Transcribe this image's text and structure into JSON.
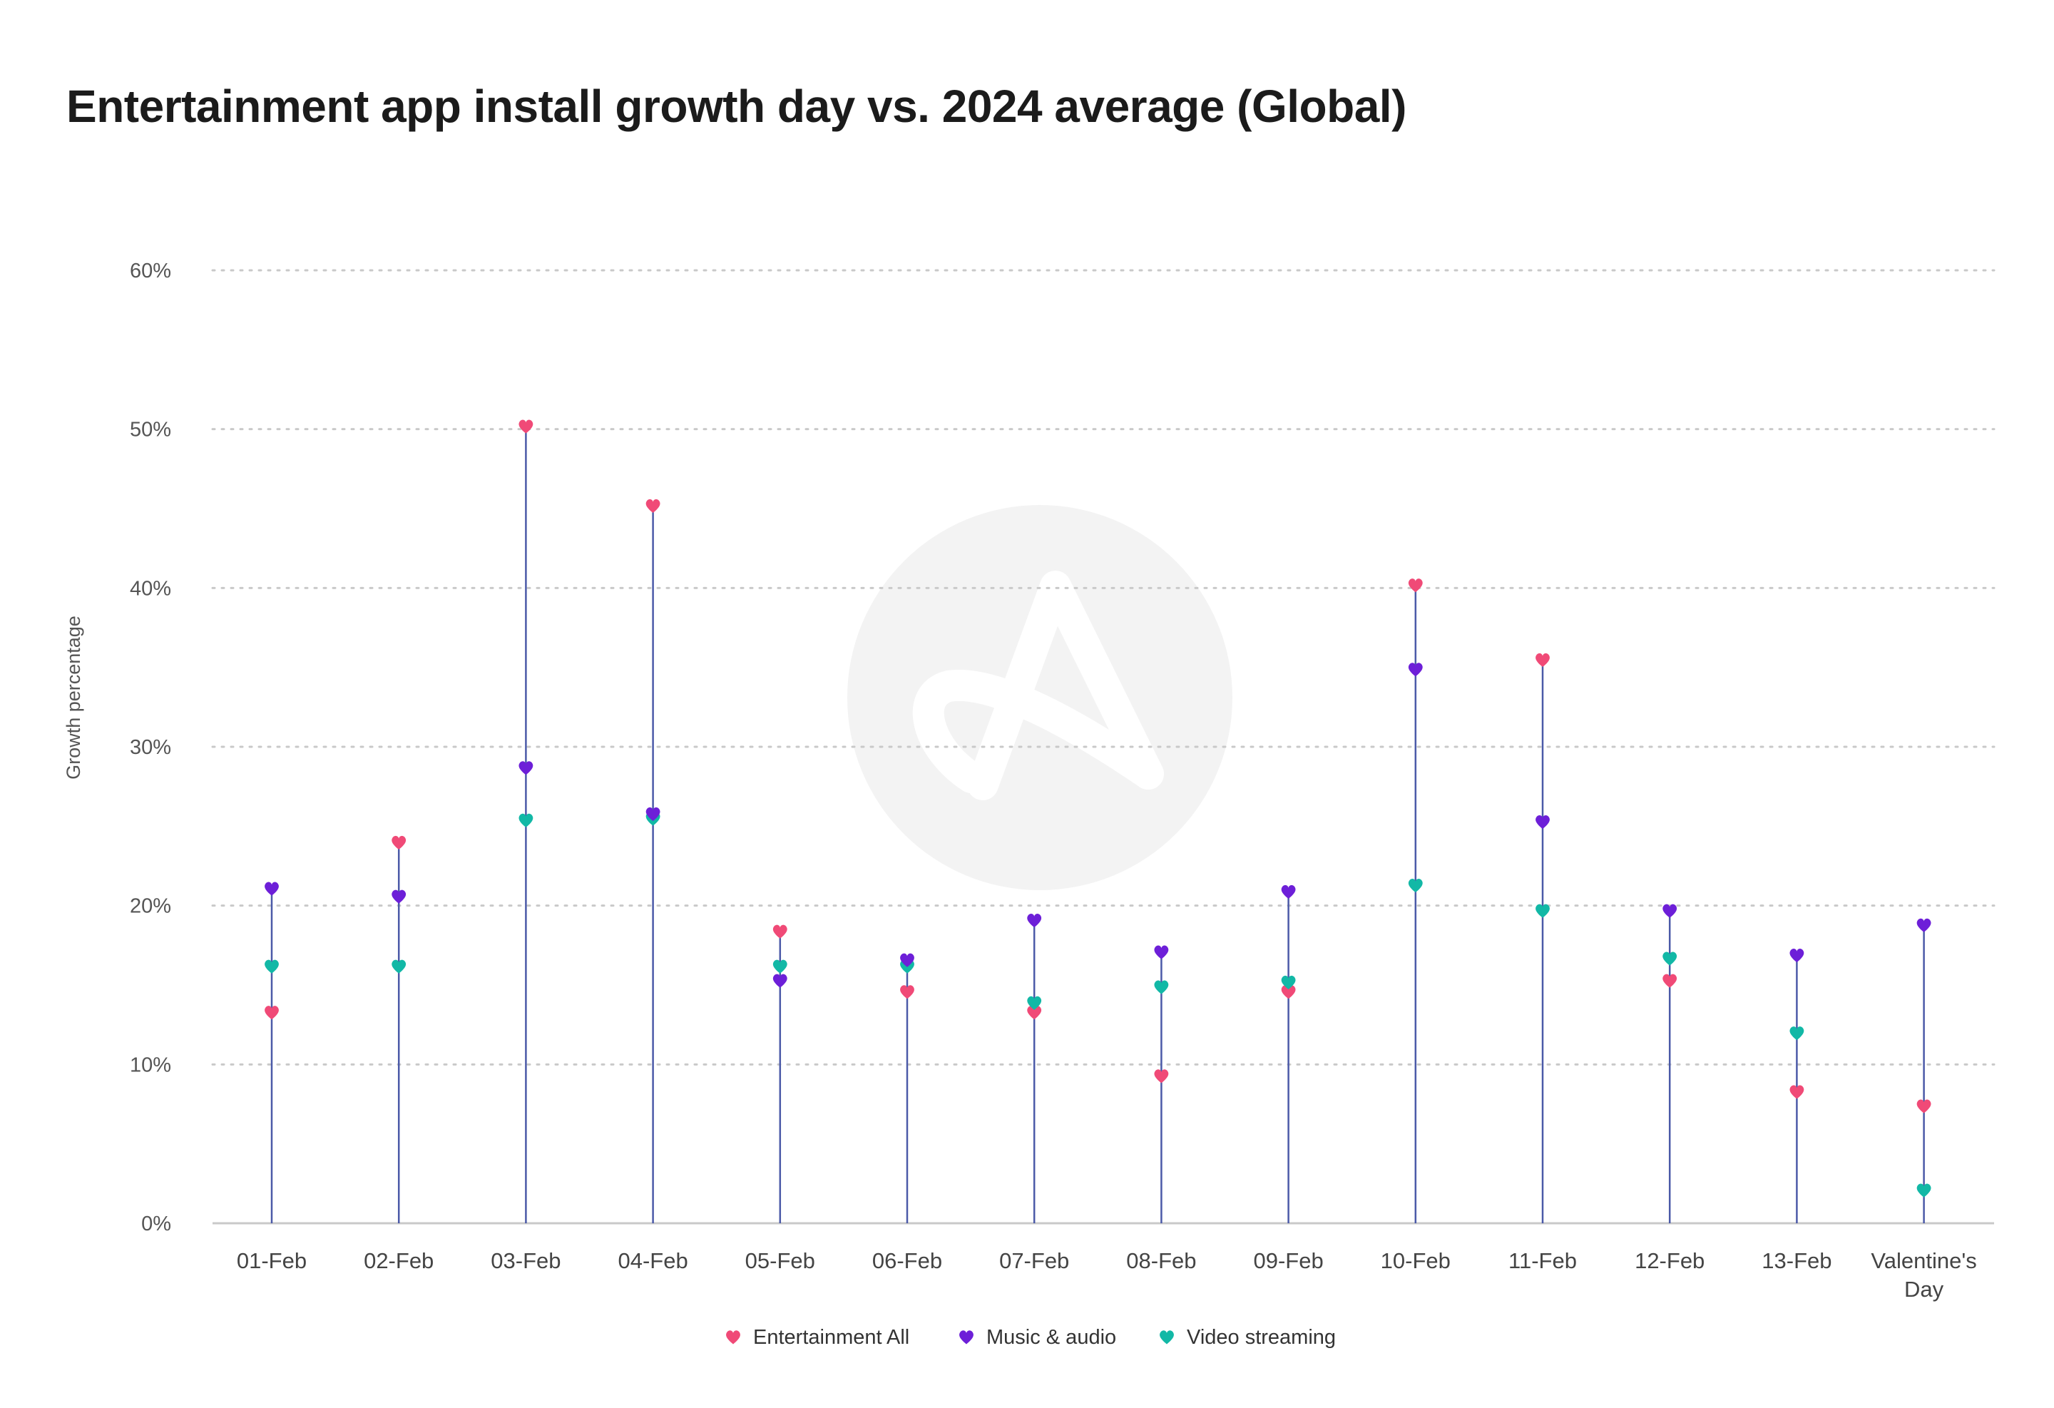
{
  "chart_data": {
    "type": "scatter",
    "title": "Entertainment app install growth day vs. 2024 average (Global)",
    "ylabel": "Growth percentage",
    "xlabel": "",
    "ylim": [
      0,
      60
    ],
    "yticks": [
      0,
      10,
      20,
      30,
      40,
      50,
      60
    ],
    "ytick_labels": [
      "0%",
      "10%",
      "20%",
      "30%",
      "40%",
      "50%",
      "60%"
    ],
    "grid": true,
    "legend": "bottom-center",
    "marker": "heart",
    "categories": [
      [
        "01-Feb"
      ],
      [
        "02-Feb"
      ],
      [
        "03-Feb"
      ],
      [
        "04-Feb"
      ],
      [
        "05-Feb"
      ],
      [
        "06-Feb"
      ],
      [
        "07-Feb"
      ],
      [
        "08-Feb"
      ],
      [
        "09-Feb"
      ],
      [
        "10-Feb"
      ],
      [
        "11-Feb"
      ],
      [
        "12-Feb"
      ],
      [
        "13-Feb"
      ],
      [
        "Valentine's",
        "Day"
      ]
    ],
    "series": [
      {
        "name": "Entertainment All",
        "color": "#f04a77",
        "values": [
          13.3,
          24.0,
          50.2,
          45.2,
          18.4,
          14.6,
          13.3,
          9.3,
          14.6,
          40.2,
          35.5,
          15.3,
          8.3,
          7.4
        ]
      },
      {
        "name": "Music & audio",
        "color": "#6d1fd8",
        "values": [
          21.1,
          20.6,
          28.7,
          25.8,
          15.3,
          16.6,
          19.1,
          17.1,
          20.9,
          34.9,
          25.3,
          19.7,
          16.9,
          18.8
        ]
      },
      {
        "name": "Video streaming",
        "color": "#12b8a6",
        "values": [
          16.2,
          16.2,
          25.4,
          25.5,
          16.2,
          16.2,
          13.9,
          14.9,
          15.2,
          21.3,
          19.7,
          16.7,
          12.0,
          2.1
        ]
      }
    ]
  },
  "watermark": {
    "name": "logo-watermark-icon",
    "color": "#f3f3f3"
  }
}
